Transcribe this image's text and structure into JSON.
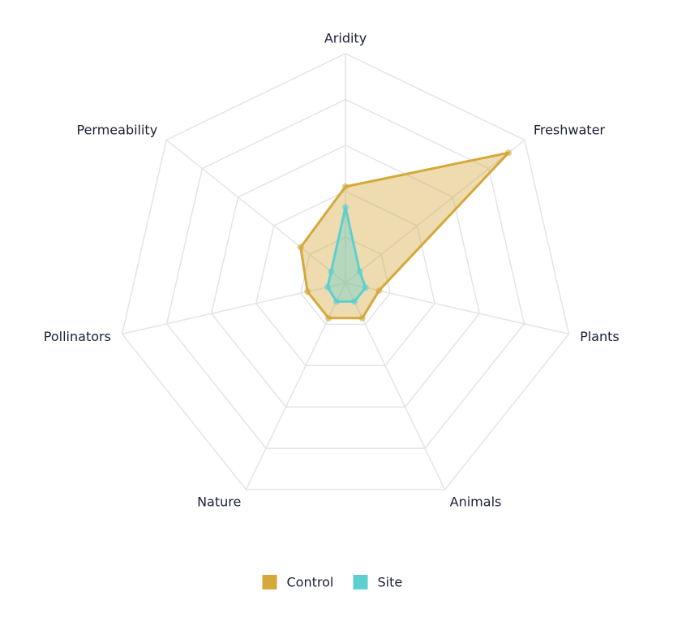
{
  "chart_data": {
    "type": "radar",
    "categories": [
      "Aridity",
      "Freshwater",
      "Plants",
      "Animals",
      "Nature",
      "Pollinators",
      "Permeability"
    ],
    "series": [
      {
        "name": "Control",
        "color": "#d4a83a",
        "values": [
          42,
          91,
          15,
          17,
          17,
          17,
          25
        ]
      },
      {
        "name": "Site",
        "color": "#5ecfcf",
        "values": [
          33,
          8,
          9,
          9,
          9,
          8,
          8
        ]
      }
    ],
    "rlim": [
      0,
      100
    ],
    "rticks": [
      20,
      40,
      60,
      80,
      100
    ],
    "grid": true,
    "legend": "bottom"
  }
}
